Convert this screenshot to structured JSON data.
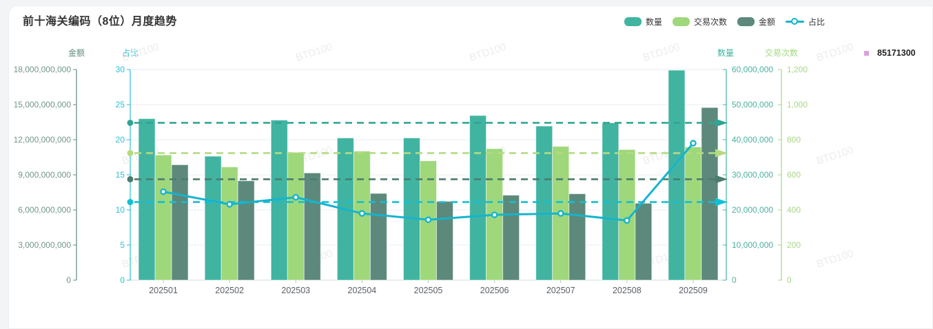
{
  "page": {
    "background": "#f3f4f6",
    "card_background": "#ffffff"
  },
  "header": {
    "title": "前十海关编码（8位）月度趋势"
  },
  "legend": {
    "items": [
      {
        "label": "数量",
        "color": "#41b4a1",
        "icon": "rect"
      },
      {
        "label": "交易次数",
        "color": "#9fd77b",
        "icon": "rect"
      },
      {
        "label": "金额",
        "color": "#5c897b",
        "icon": "rect"
      },
      {
        "label": "占比",
        "color": "#17b3cb",
        "icon": "line-marker"
      }
    ]
  },
  "hs_code_tag": {
    "label": "85171300",
    "color": "#dda0dd"
  },
  "watermark": {
    "text": "BTD100",
    "color": "#ececec"
  },
  "chart_data": {
    "type": "bar",
    "title": "前十海关编码（8位）月度趋势",
    "categories": [
      "202501",
      "202502",
      "202503",
      "202504",
      "202505",
      "202506",
      "202507",
      "202508",
      "202509"
    ],
    "series": [
      {
        "name": "数量",
        "type": "bar",
        "axis": "quantity",
        "color": "#41b4a1",
        "avg_color": "#30a593",
        "values": [
          46000000,
          35300000,
          45600000,
          40500000,
          40500000,
          46900000,
          43900000,
          44800000,
          59800000
        ]
      },
      {
        "name": "交易次数",
        "type": "bar",
        "axis": "transactions",
        "color": "#9fd77b",
        "avg_color": "#b4db80",
        "values": [
          713,
          645,
          728,
          735,
          680,
          749,
          762,
          744,
          759
        ]
      },
      {
        "name": "金额",
        "type": "bar",
        "axis": "amount",
        "color": "#5c897b",
        "avg_color": "#4b7c6e",
        "values": [
          9860000000,
          8490000000,
          9160000000,
          7410000000,
          6730000000,
          7260000000,
          7380000000,
          6570000000,
          14750000000
        ]
      },
      {
        "name": "占比",
        "type": "line",
        "axis": "ratio",
        "color": "#16b4cc",
        "avg_color": "#10c0d6",
        "values": [
          12.6,
          10.8,
          11.8,
          9.5,
          8.6,
          9.3,
          9.5,
          8.5,
          19.5
        ]
      }
    ],
    "average_marklines": true,
    "axes": {
      "amount": {
        "name": "金额",
        "side": "left",
        "color": "#5e8b7e",
        "label_color": "#6f9689",
        "min": 0,
        "max": 18000000000,
        "tick_count": 7
      },
      "ratio": {
        "name": "占比",
        "side": "left",
        "color": "#29bfd3",
        "label_color": "#29bfd3",
        "min": 0,
        "max": 30,
        "tick_count": 7
      },
      "quantity": {
        "name": "数量",
        "side": "right",
        "color": "#3fb3a0",
        "label_color": "#4ab0a0",
        "min": 0,
        "max": 60000000,
        "tick_count": 7
      },
      "transactions": {
        "name": "交易次数",
        "side": "right",
        "color": "#a3d97f",
        "label_color": "#a5d884",
        "min": 0,
        "max": 1200,
        "tick_count": 7
      }
    },
    "grid": true,
    "legend_position": "top-right",
    "x_label_color": "#5a5e66"
  }
}
